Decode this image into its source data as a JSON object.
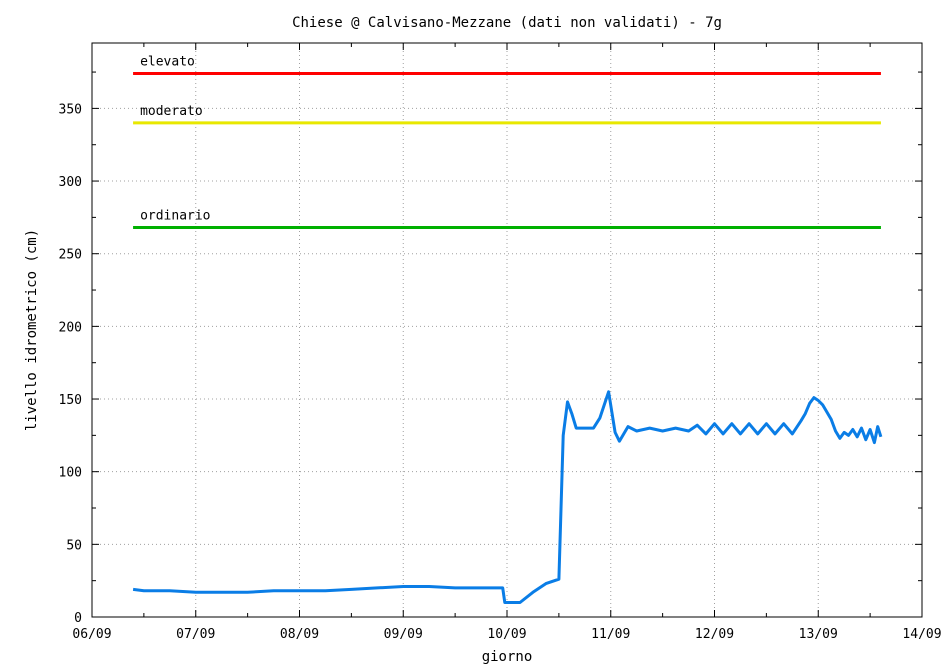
{
  "chart_data": {
    "type": "line",
    "title": "Chiese @  Calvisano-Mezzane (dati non validati) - 7g",
    "xlabel": "giorno",
    "ylabel": "livello idrometrico (cm)",
    "x_ticks": [
      "06/09",
      "07/09",
      "08/09",
      "09/09",
      "10/09",
      "11/09",
      "12/09",
      "13/09",
      "14/09"
    ],
    "xlim": [
      "06/09",
      "14/09"
    ],
    "y_ticks": [
      0,
      50,
      100,
      150,
      200,
      250,
      300,
      350
    ],
    "ylim": [
      0,
      395
    ],
    "grid": true,
    "thresholds": [
      {
        "label": "elevato",
        "value": 374,
        "color": "#ff0000",
        "x_start": "06/09 09:30",
        "x_end": "13/09 14:30"
      },
      {
        "label": "moderato",
        "value": 340,
        "color": "#e8e800",
        "x_start": "06/09 09:30",
        "x_end": "13/09 14:30"
      },
      {
        "label": "ordinario",
        "value": 268,
        "color": "#00b000",
        "x_start": "06/09 09:30",
        "x_end": "13/09 14:30"
      }
    ],
    "series": [
      {
        "color": "#0a7de6",
        "points": [
          [
            "06/09 09:30",
            19
          ],
          [
            "06/09 12:00",
            18
          ],
          [
            "06/09 18:00",
            18
          ],
          [
            "07/09 00:00",
            17
          ],
          [
            "07/09 06:00",
            17
          ],
          [
            "07/09 12:00",
            17
          ],
          [
            "07/09 18:00",
            18
          ],
          [
            "08/09 00:00",
            18
          ],
          [
            "08/09 06:00",
            18
          ],
          [
            "08/09 12:00",
            19
          ],
          [
            "08/09 18:00",
            20
          ],
          [
            "09/09 00:00",
            21
          ],
          [
            "09/09 06:00",
            21
          ],
          [
            "09/09 12:00",
            20
          ],
          [
            "09/09 18:00",
            20
          ],
          [
            "09/09 22:00",
            20
          ],
          [
            "09/09 23:00",
            20
          ],
          [
            "09/09 23:30",
            10
          ],
          [
            "10/09 03:00",
            10
          ],
          [
            "10/09 06:00",
            17
          ],
          [
            "10/09 09:00",
            23
          ],
          [
            "10/09 12:00",
            26
          ],
          [
            "10/09 13:00",
            125
          ],
          [
            "10/09 14:00",
            148
          ],
          [
            "10/09 15:00",
            140
          ],
          [
            "10/09 16:00",
            130
          ],
          [
            "10/09 20:00",
            130
          ],
          [
            "10/09 21:30",
            137
          ],
          [
            "10/09 23:30",
            155
          ],
          [
            "11/09 01:00",
            127
          ],
          [
            "11/09 02:00",
            121
          ],
          [
            "11/09 04:00",
            131
          ],
          [
            "11/09 06:00",
            128
          ],
          [
            "11/09 09:00",
            130
          ],
          [
            "11/09 12:00",
            128
          ],
          [
            "11/09 15:00",
            130
          ],
          [
            "11/09 18:00",
            128
          ],
          [
            "11/09 20:00",
            132
          ],
          [
            "11/09 22:00",
            126
          ],
          [
            "12/09 00:00",
            133
          ],
          [
            "12/09 02:00",
            126
          ],
          [
            "12/09 04:00",
            133
          ],
          [
            "12/09 06:00",
            126
          ],
          [
            "12/09 08:00",
            133
          ],
          [
            "12/09 10:00",
            126
          ],
          [
            "12/09 12:00",
            133
          ],
          [
            "12/09 14:00",
            126
          ],
          [
            "12/09 16:00",
            133
          ],
          [
            "12/09 18:00",
            126
          ],
          [
            "12/09 20:00",
            135
          ],
          [
            "12/09 21:00",
            140
          ],
          [
            "12/09 22:00",
            147
          ],
          [
            "12/09 23:00",
            151
          ],
          [
            "13/09 00:00",
            149
          ],
          [
            "13/09 01:00",
            146
          ],
          [
            "13/09 03:00",
            136
          ],
          [
            "13/09 04:00",
            128
          ],
          [
            "13/09 05:00",
            123
          ],
          [
            "13/09 06:00",
            127
          ],
          [
            "13/09 07:00",
            125
          ],
          [
            "13/09 08:00",
            129
          ],
          [
            "13/09 09:00",
            124
          ],
          [
            "13/09 10:00",
            130
          ],
          [
            "13/09 11:00",
            122
          ],
          [
            "13/09 12:00",
            129
          ],
          [
            "13/09 13:00",
            120
          ],
          [
            "13/09 13:45",
            131
          ],
          [
            "13/09 14:30",
            124
          ]
        ]
      }
    ]
  }
}
